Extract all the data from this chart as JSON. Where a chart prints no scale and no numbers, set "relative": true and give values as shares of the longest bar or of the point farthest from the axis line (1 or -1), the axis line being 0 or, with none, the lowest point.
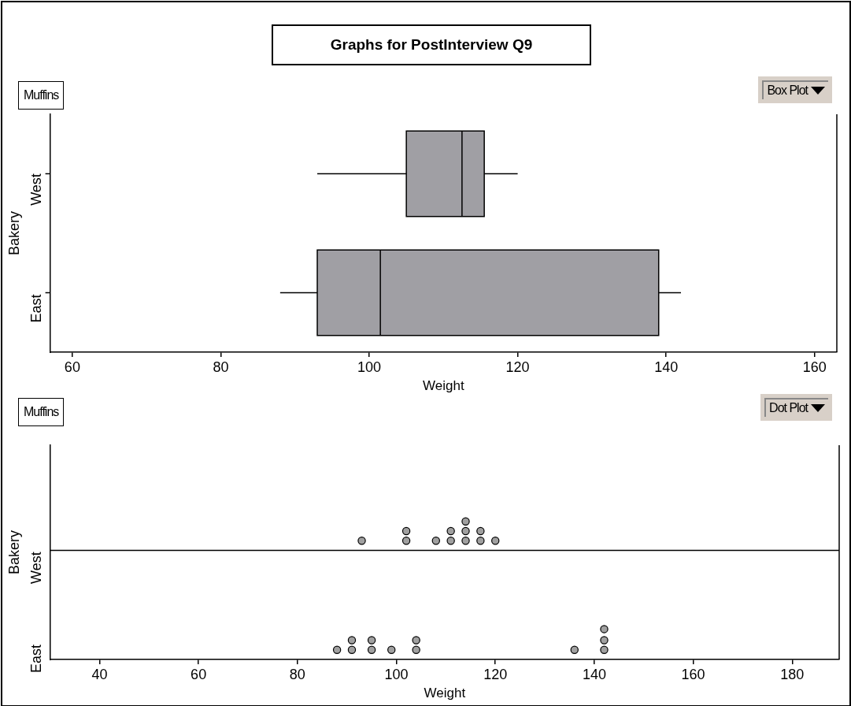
{
  "chart_data": [
    {
      "type": "box",
      "orientation": "horizontal",
      "title": "Graphs for PostInterview Q9",
      "annotations": [
        "Muffins",
        "Box Plot"
      ],
      "categories": [
        "West",
        "East"
      ],
      "color": "#a09fa4",
      "xlabel": "Weight",
      "ylabel": "Bakery",
      "xlim": [
        57,
        163
      ],
      "xticks": [
        60,
        80,
        100,
        120,
        140,
        160
      ],
      "boxes": [
        {
          "low": 93,
          "q1": 105,
          "median": 112.5,
          "q3": 115.5,
          "high": 120
        },
        {
          "low": 88,
          "q1": 93,
          "median": 101.5,
          "q3": 139,
          "high": 142
        }
      ]
    },
    {
      "type": "scatter",
      "annotations": [
        "Muffins",
        "Dot Plot",
        "West",
        "East"
      ],
      "color": "#a0a0a0",
      "marker": "circle",
      "xlabel": "Weight",
      "ylabel": "Bakery",
      "xlim": [
        30,
        189.5
      ],
      "xticks": [
        40,
        60,
        80,
        100,
        120,
        140,
        160,
        180
      ],
      "relative": true,
      "ref_lines": [
        {
          "axis": "y",
          "value": 0.79
        }
      ],
      "series": [
        {
          "x": [
            93,
            102,
            102,
            108,
            111,
            111,
            114,
            114,
            114,
            117,
            117,
            120
          ],
          "values": [
            0.86,
            0.86,
            0.93,
            0.86,
            0.86,
            0.93,
            0.86,
            0.93,
            1,
            0.86,
            0.93,
            0.86
          ]
        },
        {
          "x": [
            88,
            91,
            91,
            95,
            95,
            99,
            104,
            104,
            136,
            142,
            142,
            142
          ],
          "values": [
            0.07,
            0.07,
            0.14,
            0.07,
            0.14,
            0.07,
            0.07,
            0.14,
            0.07,
            0.07,
            0.14,
            0.22
          ]
        }
      ]
    }
  ]
}
